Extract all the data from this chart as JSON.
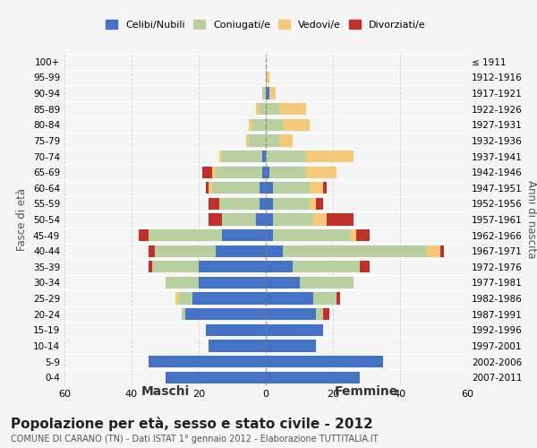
{
  "age_groups": [
    "100+",
    "95-99",
    "90-94",
    "85-89",
    "80-84",
    "75-79",
    "70-74",
    "65-69",
    "60-64",
    "55-59",
    "50-54",
    "45-49",
    "40-44",
    "35-39",
    "30-34",
    "25-29",
    "20-24",
    "15-19",
    "10-14",
    "5-9",
    "0-4"
  ],
  "birth_years": [
    "≤ 1911",
    "1912-1916",
    "1917-1921",
    "1922-1926",
    "1927-1931",
    "1932-1936",
    "1937-1941",
    "1942-1946",
    "1947-1951",
    "1952-1956",
    "1957-1961",
    "1962-1966",
    "1967-1971",
    "1972-1976",
    "1977-1981",
    "1982-1986",
    "1987-1991",
    "1992-1996",
    "1997-2001",
    "2002-2006",
    "2007-2011"
  ],
  "maschi": {
    "celibi": [
      0,
      0,
      0,
      0,
      0,
      0,
      1,
      1,
      2,
      2,
      3,
      13,
      15,
      20,
      20,
      22,
      24,
      18,
      17,
      35,
      30
    ],
    "coniugati": [
      0,
      0,
      1,
      2,
      4,
      5,
      12,
      14,
      14,
      12,
      10,
      22,
      18,
      14,
      10,
      4,
      1,
      0,
      0,
      0,
      0
    ],
    "vedovi": [
      0,
      0,
      0,
      1,
      1,
      1,
      1,
      1,
      1,
      0,
      0,
      0,
      0,
      0,
      0,
      1,
      0,
      0,
      0,
      0,
      0
    ],
    "divorziati": [
      0,
      0,
      0,
      0,
      0,
      0,
      0,
      3,
      1,
      3,
      4,
      3,
      2,
      1,
      0,
      0,
      0,
      0,
      0,
      0,
      0
    ]
  },
  "femmine": {
    "nubili": [
      0,
      0,
      1,
      0,
      0,
      0,
      0,
      1,
      2,
      2,
      2,
      2,
      5,
      8,
      10,
      14,
      15,
      17,
      15,
      35,
      28
    ],
    "coniugate": [
      0,
      0,
      0,
      4,
      5,
      4,
      12,
      11,
      11,
      11,
      12,
      23,
      43,
      20,
      16,
      7,
      2,
      0,
      0,
      0,
      0
    ],
    "vedove": [
      0,
      1,
      2,
      8,
      8,
      4,
      14,
      9,
      4,
      2,
      4,
      2,
      4,
      0,
      0,
      0,
      0,
      0,
      0,
      0,
      0
    ],
    "divorziate": [
      0,
      0,
      0,
      0,
      0,
      0,
      0,
      0,
      1,
      2,
      8,
      4,
      1,
      3,
      0,
      1,
      2,
      0,
      0,
      0,
      0
    ]
  },
  "colors": {
    "celibi": "#4472c4",
    "coniugati": "#b8cfa0",
    "vedovi": "#f5c97a",
    "divorziati": "#c0312b"
  },
  "xlim": 60,
  "title": "Popolazione per età, sesso e stato civile - 2012",
  "subtitle": "COMUNE DI CARANO (TN) - Dati ISTAT 1° gennaio 2012 - Elaborazione TUTTITALIA.IT",
  "ylabel_left": "Fasce di età",
  "ylabel_right": "Anni di nascita",
  "xlabel_left": "Maschi",
  "xlabel_right": "Femmine",
  "legend_labels": [
    "Celibi/Nubili",
    "Coniugati/e",
    "Vedovi/e",
    "Divorziati/e"
  ],
  "bg_color": "#f5f5f5",
  "grid_color": "#cccccc"
}
